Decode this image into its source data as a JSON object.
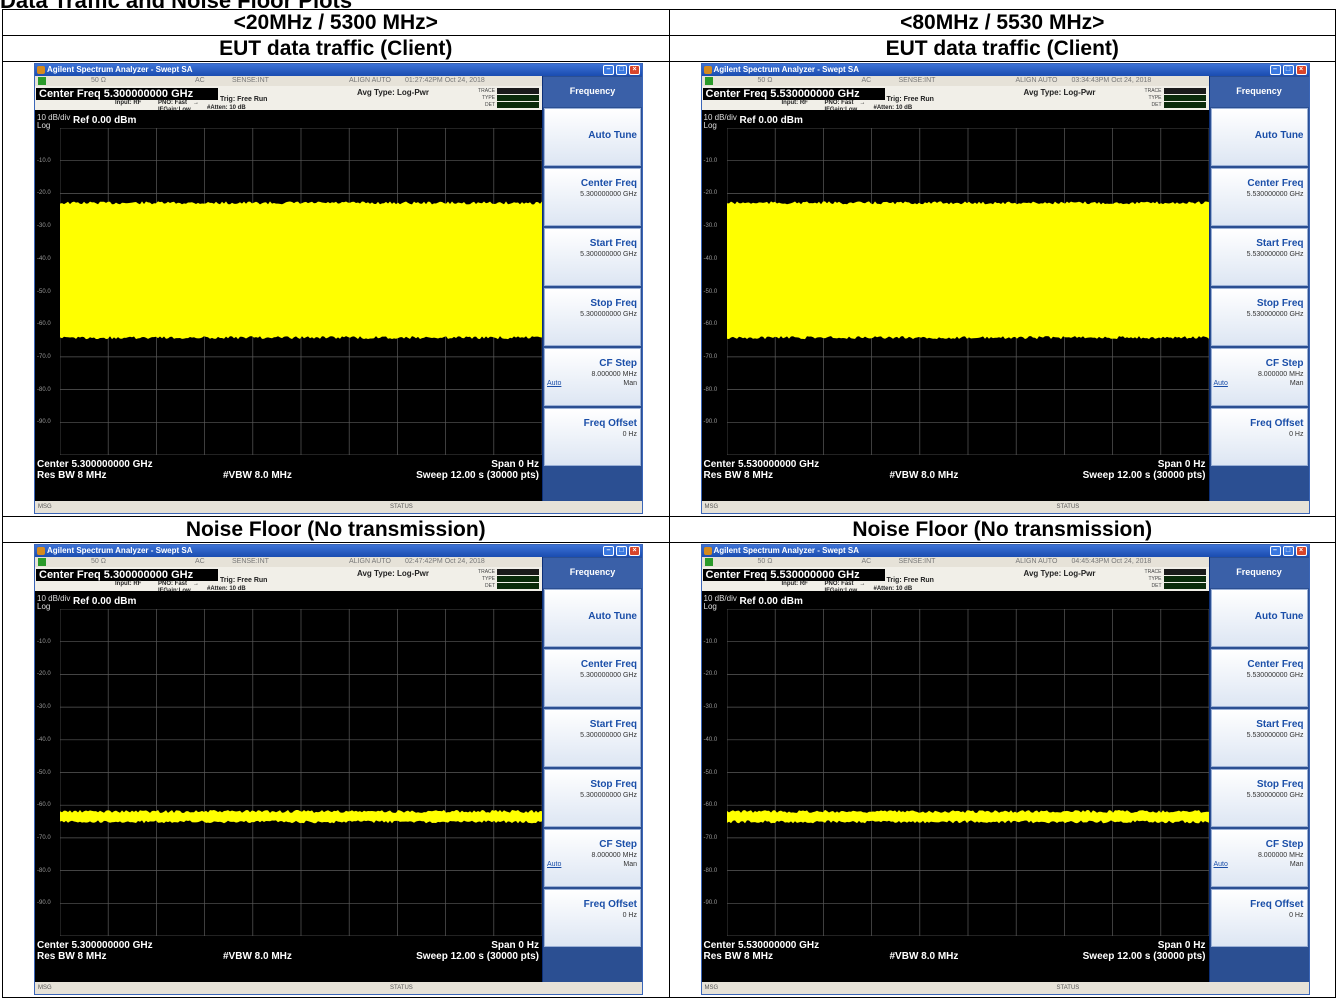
{
  "caption": "Data Traffic and Noise Floor Plots",
  "columns": [
    "<20MHz / 5300 MHz>",
    "<80MHz / 5530 MHz>"
  ],
  "row_labels": [
    "EUT data traffic (Client)",
    "Noise Floor (No transmission)"
  ],
  "plots": [
    {
      "window_title": "Agilent Spectrum Analyzer - Swept SA",
      "status_bar": {
        "impedance": "50 Ω",
        "coupling": "AC",
        "sense": "SENSE:INT",
        "align": "ALIGN AUTO",
        "timestamp": "01:27:42PM Oct 24, 2018"
      },
      "center_freq_display": "Center Freq  5.300000000 GHz",
      "input": "Input: RF",
      "pno": "PNO: Fast",
      "ifgain": "IFGain:Low",
      "trig": "Trig: Free Run",
      "atten": "#Atten: 10 dB",
      "avg_type": "Avg Type: Log-Pwr",
      "trace_labels": [
        "TRACE",
        "TYPE",
        "DET"
      ],
      "scale": "10 dB/div",
      "scale_type": "Log",
      "ref_level": "Ref 0.00 dBm",
      "y_ticks": [
        "-10.0",
        "-20.0",
        "-30.0",
        "-40.0",
        "-50.0",
        "-60.0",
        "-70.0",
        "-80.0",
        "-90.0"
      ],
      "footer": {
        "center": "Center 5.300000000 GHz",
        "span": "Span 0 Hz",
        "res_bw": "Res BW 8 MHz",
        "vbw": "#VBW 8.0 MHz",
        "sweep": "Sweep  12.00 s (30000 pts)"
      },
      "msg_bar": {
        "msg": "MSG",
        "status": "STATUS"
      },
      "menu": {
        "title": "Frequency",
        "buttons": [
          {
            "label": "Auto Tune",
            "value": ""
          },
          {
            "label": "Center Freq",
            "value": "5.300000000 GHz"
          },
          {
            "label": "Start Freq",
            "value": "5.300000000 GHz"
          },
          {
            "label": "Stop Freq",
            "value": "5.300000000 GHz"
          },
          {
            "label": "CF Step",
            "value": "8.000000 MHz",
            "auto": "Auto",
            "man": "Man"
          },
          {
            "label": "Freq Offset",
            "value": "0 Hz"
          }
        ]
      },
      "trace_band_dbm": {
        "top": -23,
        "bottom": -64
      }
    },
    {
      "window_title": "Agilent Spectrum Analyzer - Swept SA",
      "status_bar": {
        "impedance": "50 Ω",
        "coupling": "AC",
        "sense": "SENSE:INT",
        "align": "ALIGN AUTO",
        "timestamp": "03:34:43PM Oct 24, 2018"
      },
      "center_freq_display": "Center Freq  5.530000000 GHz",
      "input": "Input: RF",
      "pno": "PNO: Fast",
      "ifgain": "IFGain:Low",
      "trig": "Trig: Free Run",
      "atten": "#Atten: 10 dB",
      "avg_type": "Avg Type: Log-Pwr",
      "trace_labels": [
        "TRACE",
        "TYPE",
        "DET"
      ],
      "scale": "10 dB/div",
      "scale_type": "Log",
      "ref_level": "Ref 0.00 dBm",
      "y_ticks": [
        "-10.0",
        "-20.0",
        "-30.0",
        "-40.0",
        "-50.0",
        "-60.0",
        "-70.0",
        "-80.0",
        "-90.0"
      ],
      "footer": {
        "center": "Center 5.530000000 GHz",
        "span": "Span 0 Hz",
        "res_bw": "Res BW 8 MHz",
        "vbw": "#VBW 8.0 MHz",
        "sweep": "Sweep  12.00 s (30000 pts)"
      },
      "msg_bar": {
        "msg": "MSG",
        "status": "STATUS"
      },
      "menu": {
        "title": "Frequency",
        "buttons": [
          {
            "label": "Auto Tune",
            "value": ""
          },
          {
            "label": "Center Freq",
            "value": "5.530000000 GHz"
          },
          {
            "label": "Start Freq",
            "value": "5.530000000 GHz"
          },
          {
            "label": "Stop Freq",
            "value": "5.530000000 GHz"
          },
          {
            "label": "CF Step",
            "value": "8.000000 MHz",
            "auto": "Auto",
            "man": "Man"
          },
          {
            "label": "Freq Offset",
            "value": "0 Hz"
          }
        ]
      },
      "trace_band_dbm": {
        "top": -23,
        "bottom": -64
      }
    },
    {
      "window_title": "Agilent Spectrum Analyzer - Swept SA",
      "status_bar": {
        "impedance": "50 Ω",
        "coupling": "AC",
        "sense": "SENSE:INT",
        "align": "ALIGN AUTO",
        "timestamp": "02:47:42PM Oct 24, 2018"
      },
      "center_freq_display": "Center Freq  5.300000000 GHz",
      "input": "Input: RF",
      "pno": "PNO: Fast",
      "ifgain": "IFGain:Low",
      "trig": "Trig: Free Run",
      "atten": "#Atten: 10 dB",
      "avg_type": "Avg Type: Log-Pwr",
      "trace_labels": [
        "TRACE",
        "TYPE",
        "DET"
      ],
      "scale": "10 dB/div",
      "scale_type": "Log",
      "ref_level": "Ref 0.00 dBm",
      "y_ticks": [
        "-10.0",
        "-20.0",
        "-30.0",
        "-40.0",
        "-50.0",
        "-60.0",
        "-70.0",
        "-80.0",
        "-90.0"
      ],
      "footer": {
        "center": "Center 5.300000000 GHz",
        "span": "Span 0 Hz",
        "res_bw": "Res BW 8 MHz",
        "vbw": "#VBW 8.0 MHz",
        "sweep": "Sweep  12.00 s (30000 pts)"
      },
      "msg_bar": {
        "msg": "MSG",
        "status": "STATUS"
      },
      "menu": {
        "title": "Frequency",
        "buttons": [
          {
            "label": "Auto Tune",
            "value": ""
          },
          {
            "label": "Center Freq",
            "value": "5.300000000 GHz"
          },
          {
            "label": "Start Freq",
            "value": "5.300000000 GHz"
          },
          {
            "label": "Stop Freq",
            "value": "5.300000000 GHz"
          },
          {
            "label": "CF Step",
            "value": "8.000000 MHz",
            "auto": "Auto",
            "man": "Man"
          },
          {
            "label": "Freq Offset",
            "value": "0 Hz"
          }
        ]
      },
      "trace_band_dbm": {
        "top": -62,
        "bottom": -65
      }
    },
    {
      "window_title": "Agilent Spectrum Analyzer - Swept SA",
      "status_bar": {
        "impedance": "50 Ω",
        "coupling": "AC",
        "sense": "SENSE:INT",
        "align": "ALIGN AUTO",
        "timestamp": "04:45:43PM Oct 24, 2018"
      },
      "center_freq_display": "Center Freq  5.530000000 GHz",
      "input": "Input: RF",
      "pno": "PNO: Fast",
      "ifgain": "IFGain:Low",
      "trig": "Trig: Free Run",
      "atten": "#Atten: 10 dB",
      "avg_type": "Avg Type: Log-Pwr",
      "trace_labels": [
        "TRACE",
        "TYPE",
        "DET"
      ],
      "scale": "10 dB/div",
      "scale_type": "Log",
      "ref_level": "Ref 0.00 dBm",
      "y_ticks": [
        "-10.0",
        "-20.0",
        "-30.0",
        "-40.0",
        "-50.0",
        "-60.0",
        "-70.0",
        "-80.0",
        "-90.0"
      ],
      "footer": {
        "center": "Center 5.530000000 GHz",
        "span": "Span 0 Hz",
        "res_bw": "Res BW 8 MHz",
        "vbw": "#VBW 8.0 MHz",
        "sweep": "Sweep  12.00 s (30000 pts)"
      },
      "msg_bar": {
        "msg": "MSG",
        "status": "STATUS"
      },
      "menu": {
        "title": "Frequency",
        "buttons": [
          {
            "label": "Auto Tune",
            "value": ""
          },
          {
            "label": "Center Freq",
            "value": "5.530000000 GHz"
          },
          {
            "label": "Start Freq",
            "value": "5.530000000 GHz"
          },
          {
            "label": "Stop Freq",
            "value": "5.530000000 GHz"
          },
          {
            "label": "CF Step",
            "value": "8.000000 MHz",
            "auto": "Auto",
            "man": "Man"
          },
          {
            "label": "Freq Offset",
            "value": "0 Hz"
          }
        ]
      },
      "trace_band_dbm": {
        "top": -62,
        "bottom": -65
      }
    }
  ],
  "colors": {
    "trace": "#ffff00",
    "screen": "#000000",
    "menu_bg": "#2b4f92",
    "title_bar": "#2458c4"
  }
}
